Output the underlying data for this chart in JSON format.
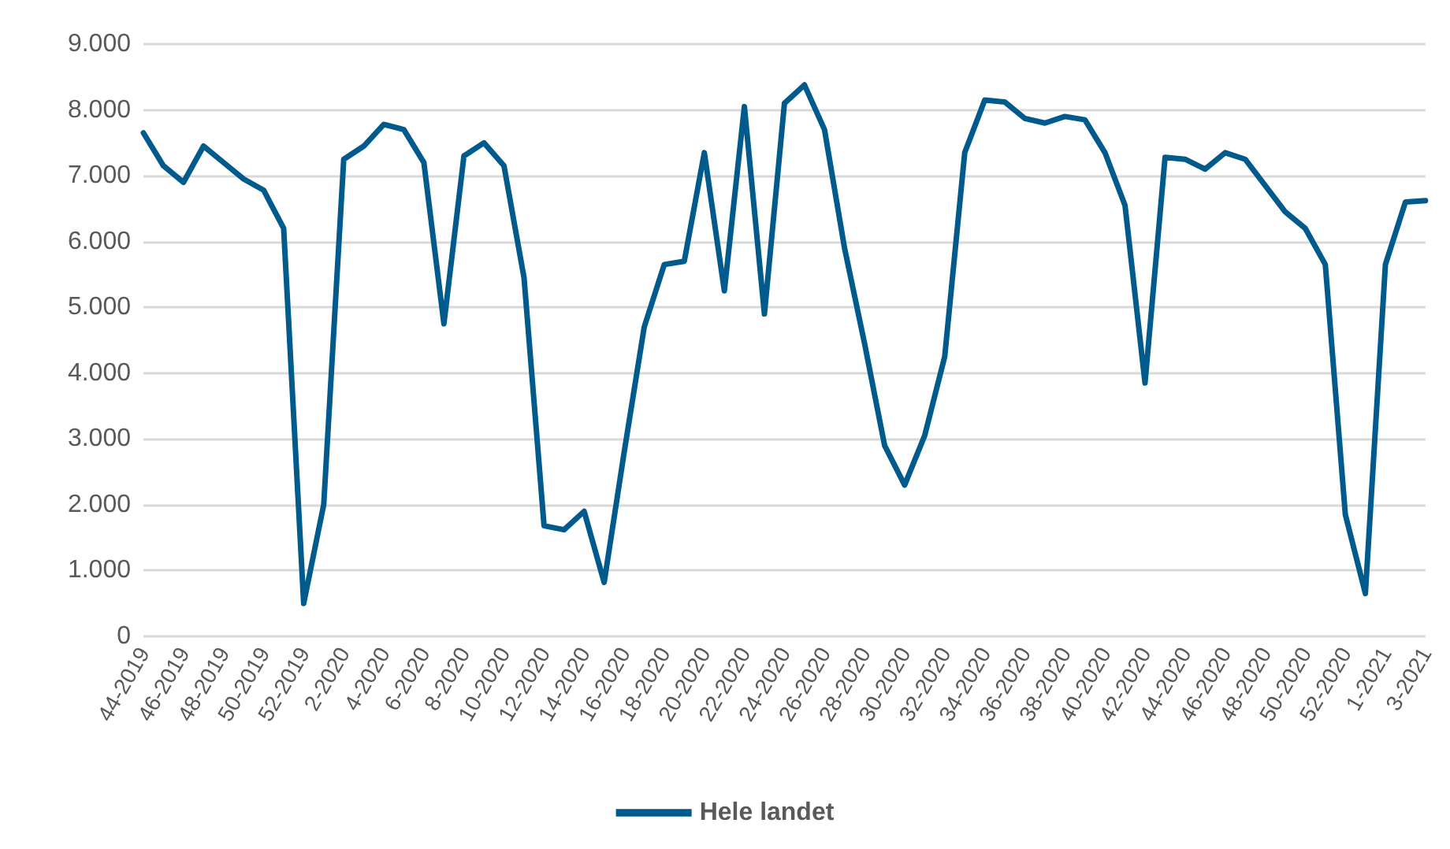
{
  "chart_data": {
    "type": "line",
    "categories": [
      "44-2019",
      null,
      "46-2019",
      null,
      "48-2019",
      null,
      "50-2019",
      null,
      "52-2019",
      null,
      "2-2020",
      null,
      "4-2020",
      null,
      "6-2020",
      null,
      "8-2020",
      null,
      "10-2020",
      null,
      "12-2020",
      null,
      "14-2020",
      null,
      "16-2020",
      null,
      "18-2020",
      null,
      "20-2020",
      null,
      "22-2020",
      null,
      "24-2020",
      null,
      "26-2020",
      null,
      "28-2020",
      null,
      "30-2020",
      null,
      "32-2020",
      null,
      "34-2020",
      null,
      "36-2020",
      null,
      "38-2020",
      null,
      "40-2020",
      null,
      "42-2020",
      null,
      "44-2020",
      null,
      "46-2020",
      null,
      "48-2020",
      null,
      "50-2020",
      null,
      "52-2020",
      null,
      "1-2021",
      null,
      "3-2021"
    ],
    "series": [
      {
        "name": "Hele landet",
        "color": "#005b8c",
        "values": [
          7650,
          7150,
          6900,
          7450,
          7200,
          6950,
          6780,
          6200,
          500,
          2000,
          7250,
          7450,
          7780,
          7700,
          7200,
          4750,
          7300,
          7500,
          7150,
          5450,
          1680,
          1620,
          1900,
          820,
          2800,
          4700,
          5650,
          5700,
          7350,
          5250,
          8050,
          4900,
          8100,
          8380,
          7700,
          5900,
          4450,
          2900,
          2300,
          3050,
          4250,
          7350,
          8150,
          8120,
          7870,
          7800,
          7900,
          7850,
          7350,
          6550,
          3850,
          7280,
          7250,
          7100,
          7350,
          7250,
          6850,
          6450,
          6200,
          5650,
          1850,
          650,
          5650,
          6600,
          6620
        ]
      }
    ],
    "ylim": [
      0,
      9000
    ],
    "yticks": [
      0,
      {
        "value": 1000,
        "label": "1.000"
      },
      {
        "value": 2000,
        "label": "2.000"
      },
      {
        "value": 3000,
        "label": "3.000"
      },
      {
        "value": 4000,
        "label": "4.000"
      },
      {
        "value": 5000,
        "label": "5.000"
      },
      {
        "value": 6000,
        "label": "6.000"
      },
      {
        "value": 7000,
        "label": "7.000"
      },
      {
        "value": 8000,
        "label": "8.000"
      },
      {
        "value": 9000,
        "label": "9.000"
      }
    ],
    "grid": "y",
    "legend": "bottom",
    "marker": "none",
    "line_style": "solid"
  }
}
